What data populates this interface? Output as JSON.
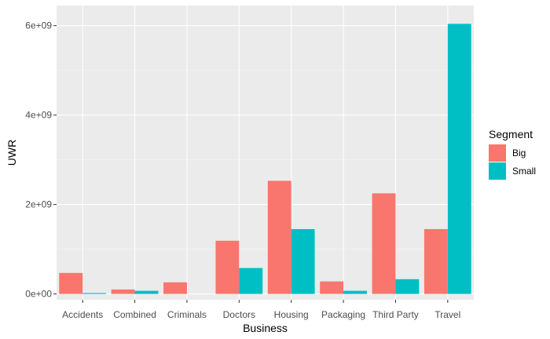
{
  "chart_data": {
    "type": "bar",
    "xlabel": "Business",
    "ylabel": "UWR",
    "categories": [
      "Accidents",
      "Combined",
      "Criminals",
      "Doctors",
      "Housing",
      "Packaging",
      "Third Party",
      "Travel"
    ],
    "series": [
      {
        "name": "Big",
        "color": "#F8766D",
        "values": [
          470000000,
          100000000,
          260000000,
          1190000000,
          2530000000,
          280000000,
          2250000000,
          1450000000
        ]
      },
      {
        "name": "Small",
        "color": "#00BFC4",
        "values": [
          20000000,
          70000000,
          0,
          580000000,
          1450000000,
          70000000,
          330000000,
          6040000000
        ]
      }
    ],
    "ylim": [
      -130000000,
      6450000000
    ],
    "yticks": [
      0,
      2000000000,
      4000000000,
      6000000000
    ],
    "ytick_labels": [
      "0e+00",
      "2e+09",
      "4e+09",
      "6e+09"
    ],
    "grid": true,
    "legend": {
      "title": "Segment",
      "placement": "right"
    }
  }
}
